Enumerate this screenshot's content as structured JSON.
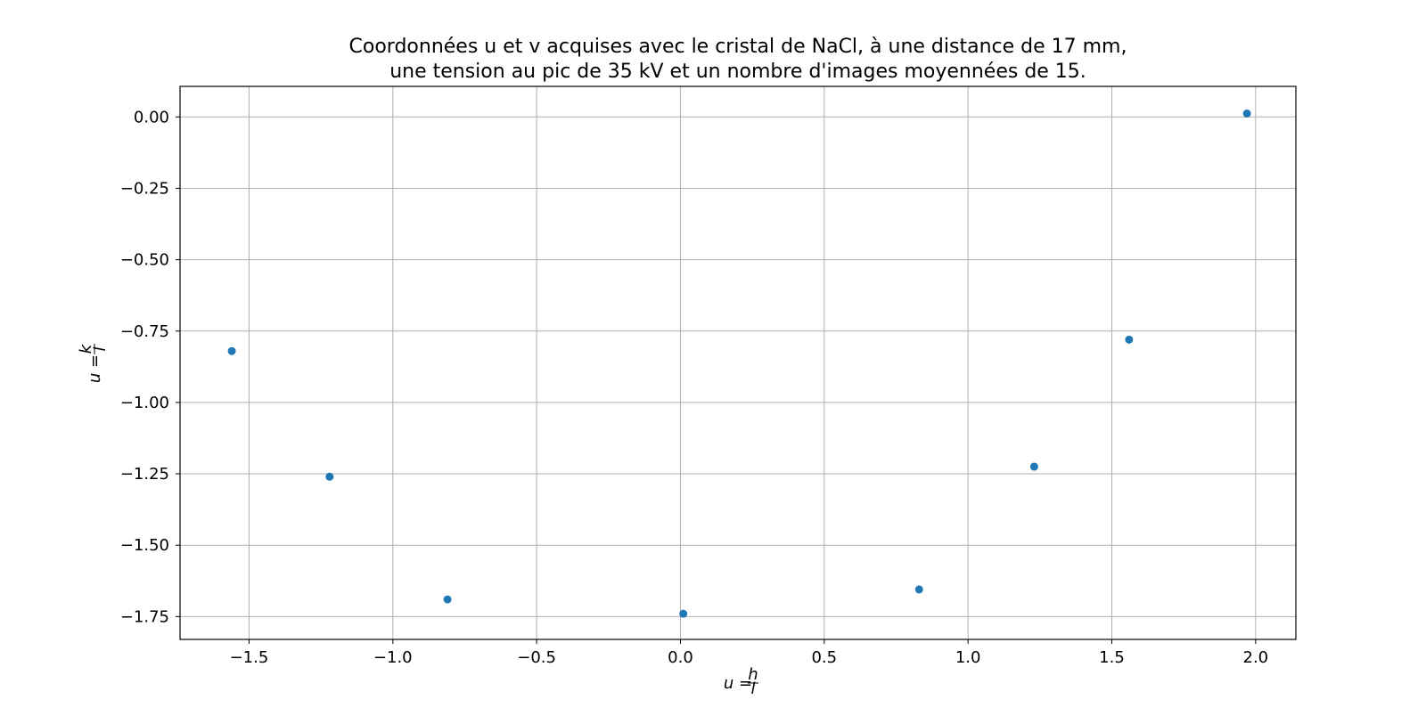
{
  "chart_data": {
    "type": "scatter",
    "title_lines": [
      "Coordonnées u et v acquises avec le cristal de NaCl, à une distance de 17 mm,",
      "une tension au pic de 35 kV et un nombre d'images moyennées de 15."
    ],
    "xlabel": {
      "var": "u",
      "eq": " = ",
      "num": "h",
      "den": "l"
    },
    "ylabel": {
      "var": "u",
      "eq": " = ",
      "num": "k",
      "den": "l"
    },
    "xlim": [
      -1.74,
      2.14
    ],
    "ylim": [
      -1.83,
      0.107
    ],
    "x_ticks": [
      {
        "value": -1.5,
        "label": "−1.5"
      },
      {
        "value": -1.0,
        "label": "−1.0"
      },
      {
        "value": -0.5,
        "label": "−0.5"
      },
      {
        "value": 0.0,
        "label": "0.0"
      },
      {
        "value": 0.5,
        "label": "0.5"
      },
      {
        "value": 1.0,
        "label": "1.0"
      },
      {
        "value": 1.5,
        "label": "1.5"
      },
      {
        "value": 2.0,
        "label": "2.0"
      }
    ],
    "y_ticks": [
      {
        "value": 0.0,
        "label": "0.00"
      },
      {
        "value": -0.25,
        "label": "−0.25"
      },
      {
        "value": -0.5,
        "label": "−0.50"
      },
      {
        "value": -0.75,
        "label": "−0.75"
      },
      {
        "value": -1.0,
        "label": "−1.00"
      },
      {
        "value": -1.25,
        "label": "−1.25"
      },
      {
        "value": -1.5,
        "label": "−1.50"
      },
      {
        "value": -1.75,
        "label": "−1.75"
      }
    ],
    "grid": true,
    "legend": "none",
    "series": [
      {
        "color": "#1f77b4",
        "points": [
          {
            "x": -1.56,
            "y": -0.82
          },
          {
            "x": -1.22,
            "y": -1.26
          },
          {
            "x": -0.81,
            "y": -1.69
          },
          {
            "x": 0.01,
            "y": -1.74
          },
          {
            "x": 0.83,
            "y": -1.655
          },
          {
            "x": 1.23,
            "y": -1.225
          },
          {
            "x": 1.56,
            "y": -0.78
          },
          {
            "x": 1.97,
            "y": 0.012
          }
        ]
      }
    ]
  }
}
